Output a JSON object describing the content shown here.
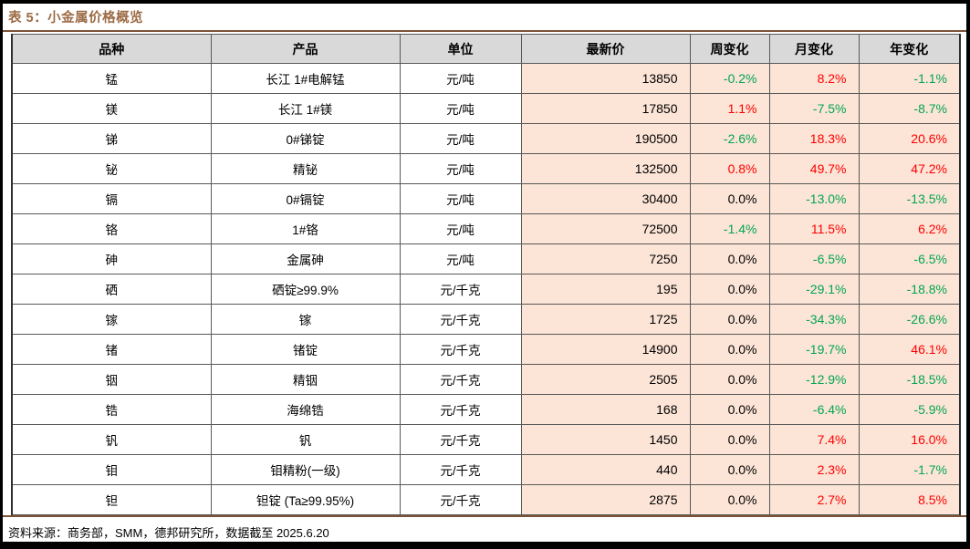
{
  "title": "表 5：小金属价格概览",
  "footer": "资料来源：商务部，SMM，德邦研究所，数据截至 2025.6.20",
  "colors": {
    "title_accent": "#9c6b45",
    "rule_brown": "#7b5336",
    "header_bg": "#d9d9d9",
    "value_bg": "#fce4d6",
    "change_up_red": "#ff0000",
    "change_down_green": "#00a650",
    "change_flat_black": "#000000"
  },
  "table": {
    "headers": [
      "品种",
      "产品",
      "单位",
      "最新价",
      "周变化",
      "月变化",
      "年变化"
    ],
    "rows": [
      {
        "variety": "锰",
        "product": "长江 1#电解锰",
        "unit": "元/吨",
        "price": "13850",
        "week": "-0.2%",
        "month": "8.2%",
        "year": "-1.1%"
      },
      {
        "variety": "镁",
        "product": "长江 1#镁",
        "unit": "元/吨",
        "price": "17850",
        "week": "1.1%",
        "month": "-7.5%",
        "year": "-8.7%"
      },
      {
        "variety": "锑",
        "product": "0#锑锭",
        "unit": "元/吨",
        "price": "190500",
        "week": "-2.6%",
        "month": "18.3%",
        "year": "20.6%"
      },
      {
        "variety": "铋",
        "product": "精铋",
        "unit": "元/吨",
        "price": "132500",
        "week": "0.8%",
        "month": "49.7%",
        "year": "47.2%"
      },
      {
        "variety": "镉",
        "product": "0#镉锭",
        "unit": "元/吨",
        "price": "30400",
        "week": "0.0%",
        "month": "-13.0%",
        "year": "-13.5%"
      },
      {
        "variety": "铬",
        "product": "1#铬",
        "unit": "元/吨",
        "price": "72500",
        "week": "-1.4%",
        "month": "11.5%",
        "year": "6.2%"
      },
      {
        "variety": "砷",
        "product": "金属砷",
        "unit": "元/吨",
        "price": "7250",
        "week": "0.0%",
        "month": "-6.5%",
        "year": "-6.5%"
      },
      {
        "variety": "硒",
        "product": "硒锭≥99.9%",
        "unit": "元/千克",
        "price": "195",
        "week": "0.0%",
        "month": "-29.1%",
        "year": "-18.8%"
      },
      {
        "variety": "镓",
        "product": "镓",
        "unit": "元/千克",
        "price": "1725",
        "week": "0.0%",
        "month": "-34.3%",
        "year": "-26.6%"
      },
      {
        "variety": "锗",
        "product": "锗锭",
        "unit": "元/千克",
        "price": "14900",
        "week": "0.0%",
        "month": "-19.7%",
        "year": "46.1%"
      },
      {
        "variety": "铟",
        "product": "精铟",
        "unit": "元/千克",
        "price": "2505",
        "week": "0.0%",
        "month": "-12.9%",
        "year": "-18.5%"
      },
      {
        "variety": "锆",
        "product": "海绵锆",
        "unit": "元/千克",
        "price": "168",
        "week": "0.0%",
        "month": "-6.4%",
        "year": "-5.9%"
      },
      {
        "variety": "钒",
        "product": "钒",
        "unit": "元/千克",
        "price": "1450",
        "week": "0.0%",
        "month": "7.4%",
        "year": "16.0%"
      },
      {
        "variety": "钼",
        "product": "钼精粉(一级)",
        "unit": "元/千克",
        "price": "440",
        "week": "0.0%",
        "month": "2.3%",
        "year": "-1.7%"
      },
      {
        "variety": "钽",
        "product": "钽锭 (Ta≥99.95%)",
        "unit": "元/千克",
        "price": "2875",
        "week": "0.0%",
        "month": "2.7%",
        "year": "8.5%"
      }
    ]
  }
}
